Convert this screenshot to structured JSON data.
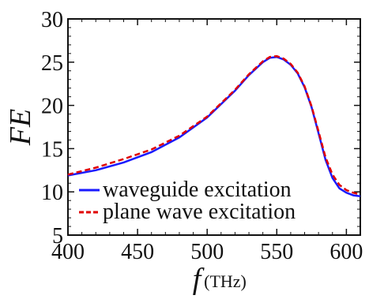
{
  "chart_data": {
    "type": "line",
    "title": "",
    "xlabel": {
      "symbol": "f",
      "unit": "(THz)"
    },
    "ylabel": "FE",
    "xlim": [
      400,
      610
    ],
    "ylim": [
      5,
      30
    ],
    "xticks": [
      400,
      450,
      500,
      550,
      600
    ],
    "yticks": [
      5,
      10,
      15,
      20,
      25,
      30
    ],
    "grid": false,
    "legend_position": "bottom-left",
    "series": [
      {
        "name": "waveguide excitation",
        "color": "#1a1aff",
        "style": "solid",
        "x": [
          400,
          420,
          440,
          460,
          480,
          500,
          520,
          530,
          540,
          545,
          550,
          555,
          560,
          565,
          570,
          575,
          580,
          585,
          590,
          595,
          600,
          605,
          610
        ],
        "y": [
          11.9,
          12.5,
          13.4,
          14.6,
          16.3,
          18.6,
          21.7,
          23.5,
          25.0,
          25.5,
          25.6,
          25.3,
          24.7,
          23.7,
          22.1,
          19.8,
          16.8,
          13.7,
          11.6,
          10.4,
          9.9,
          9.6,
          9.5
        ]
      },
      {
        "name": "plane wave excitation",
        "color": "#e00000",
        "style": "dashed",
        "x": [
          400,
          420,
          440,
          460,
          480,
          500,
          520,
          530,
          540,
          545,
          550,
          555,
          560,
          565,
          570,
          575,
          580,
          585,
          590,
          595,
          600,
          605,
          610
        ],
        "y": [
          12.0,
          12.8,
          13.8,
          14.9,
          16.5,
          18.7,
          21.8,
          23.6,
          25.1,
          25.6,
          25.7,
          25.4,
          24.8,
          23.8,
          22.2,
          19.9,
          17.0,
          14.0,
          12.0,
          10.8,
          10.2,
          9.9,
          9.7
        ]
      }
    ]
  }
}
